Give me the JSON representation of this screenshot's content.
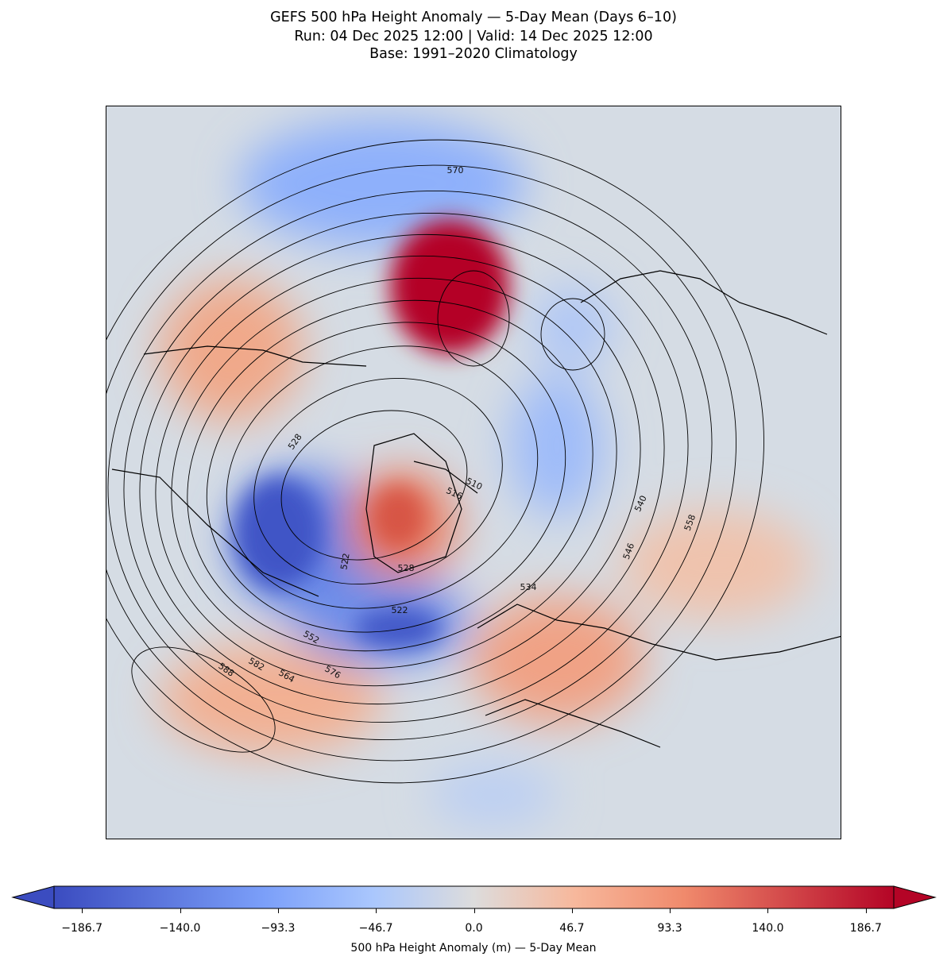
{
  "title": {
    "line1": "GEFS 500 hPa Height Anomaly — 5-Day Mean (Days 6–10)",
    "line2": "Run: 04 Dec 2025 12:00 | Valid: 14 Dec 2025 12:00",
    "line3": "Base: 1991–2020 Climatology"
  },
  "chart_data": {
    "type": "heatmap",
    "projection": "north-polar-stereographic",
    "field": "500 hPa geopotential height anomaly (m), contours of 500 hPa height (dam)",
    "contour_labels": [
      "570",
      "528",
      "510",
      "516",
      "540",
      "558",
      "546",
      "522",
      "528",
      "534",
      "522",
      "552",
      "564",
      "576",
      "582",
      "588"
    ],
    "colorbar": {
      "label": "500 hPa Height Anomaly (m) — 5-Day Mean",
      "ticks": [
        "−186.7",
        "−140.0",
        "−93.3",
        "−46.7",
        "0.0",
        "46.7",
        "93.3",
        "140.0",
        "186.7"
      ],
      "tick_values": [
        -186.7,
        -140.0,
        -93.3,
        -46.7,
        0.0,
        46.7,
        93.3,
        140.0,
        186.7
      ],
      "range": [
        -200,
        200
      ],
      "extend": "both",
      "colormap": "coolwarm",
      "low_color": "#3b4cc0",
      "mid_color": "#dddcdc",
      "high_color": "#b40426"
    }
  }
}
